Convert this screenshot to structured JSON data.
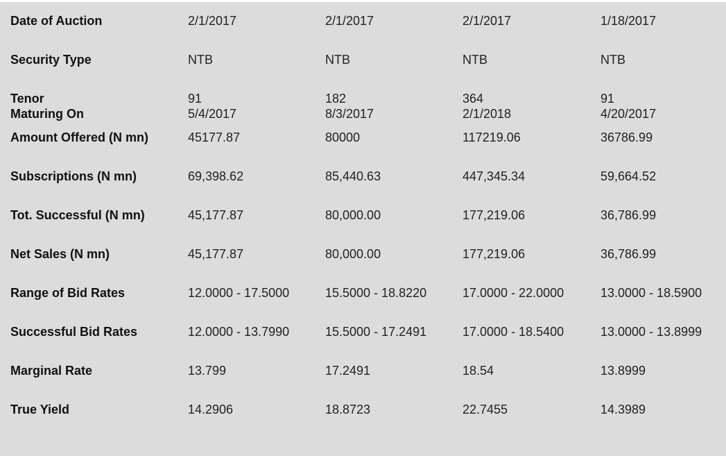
{
  "rows": [
    {
      "label": "Date of Auction",
      "values": [
        "2/1/2017",
        "2/1/2017",
        "2/1/2017",
        "1/18/2017"
      ]
    },
    {
      "label": "Security Type",
      "values": [
        "NTB",
        "NTB",
        "NTB",
        "NTB"
      ]
    },
    {
      "label": "Tenor",
      "label2": "Maturing On",
      "values": [
        "91",
        "182",
        "364",
        "91"
      ],
      "values2": [
        "5/4/2017",
        "8/3/2017",
        "2/1/2018",
        "4/20/2017"
      ]
    },
    {
      "label": "Amount Offered (N mn)",
      "values": [
        "45177.87",
        "80000",
        "117219.06",
        "36786.99"
      ]
    },
    {
      "label": "Subscriptions (N mn)",
      "values": [
        "69,398.62",
        "85,440.63",
        "447,345.34",
        "59,664.52"
      ]
    },
    {
      "label": "Tot. Successful (N mn)",
      "values": [
        "45,177.87",
        "80,000.00",
        "177,219.06",
        "36,786.99"
      ]
    },
    {
      "label": "Net Sales (N mn)",
      "values": [
        "45,177.87",
        "80,000.00",
        "177,219.06",
        "36,786.99"
      ]
    },
    {
      "label": "Range of Bid Rates",
      "values": [
        "12.0000 - 17.5000",
        "15.5000 - 18.8220",
        "17.0000 - 22.0000",
        "13.0000 - 18.5900"
      ]
    },
    {
      "label": "Successful Bid Rates",
      "values": [
        "12.0000 - 13.7990",
        "15.5000 - 17.2491",
        "17.0000 - 18.5400",
        "13.0000 - 13.8999"
      ]
    },
    {
      "label": "Marginal Rate",
      "values": [
        "13.799",
        "17.2491",
        "18.54",
        "13.8999"
      ]
    },
    {
      "label": "True Yield",
      "values": [
        "14.2906",
        "18.8723",
        "22.7455",
        "14.3989"
      ]
    }
  ]
}
